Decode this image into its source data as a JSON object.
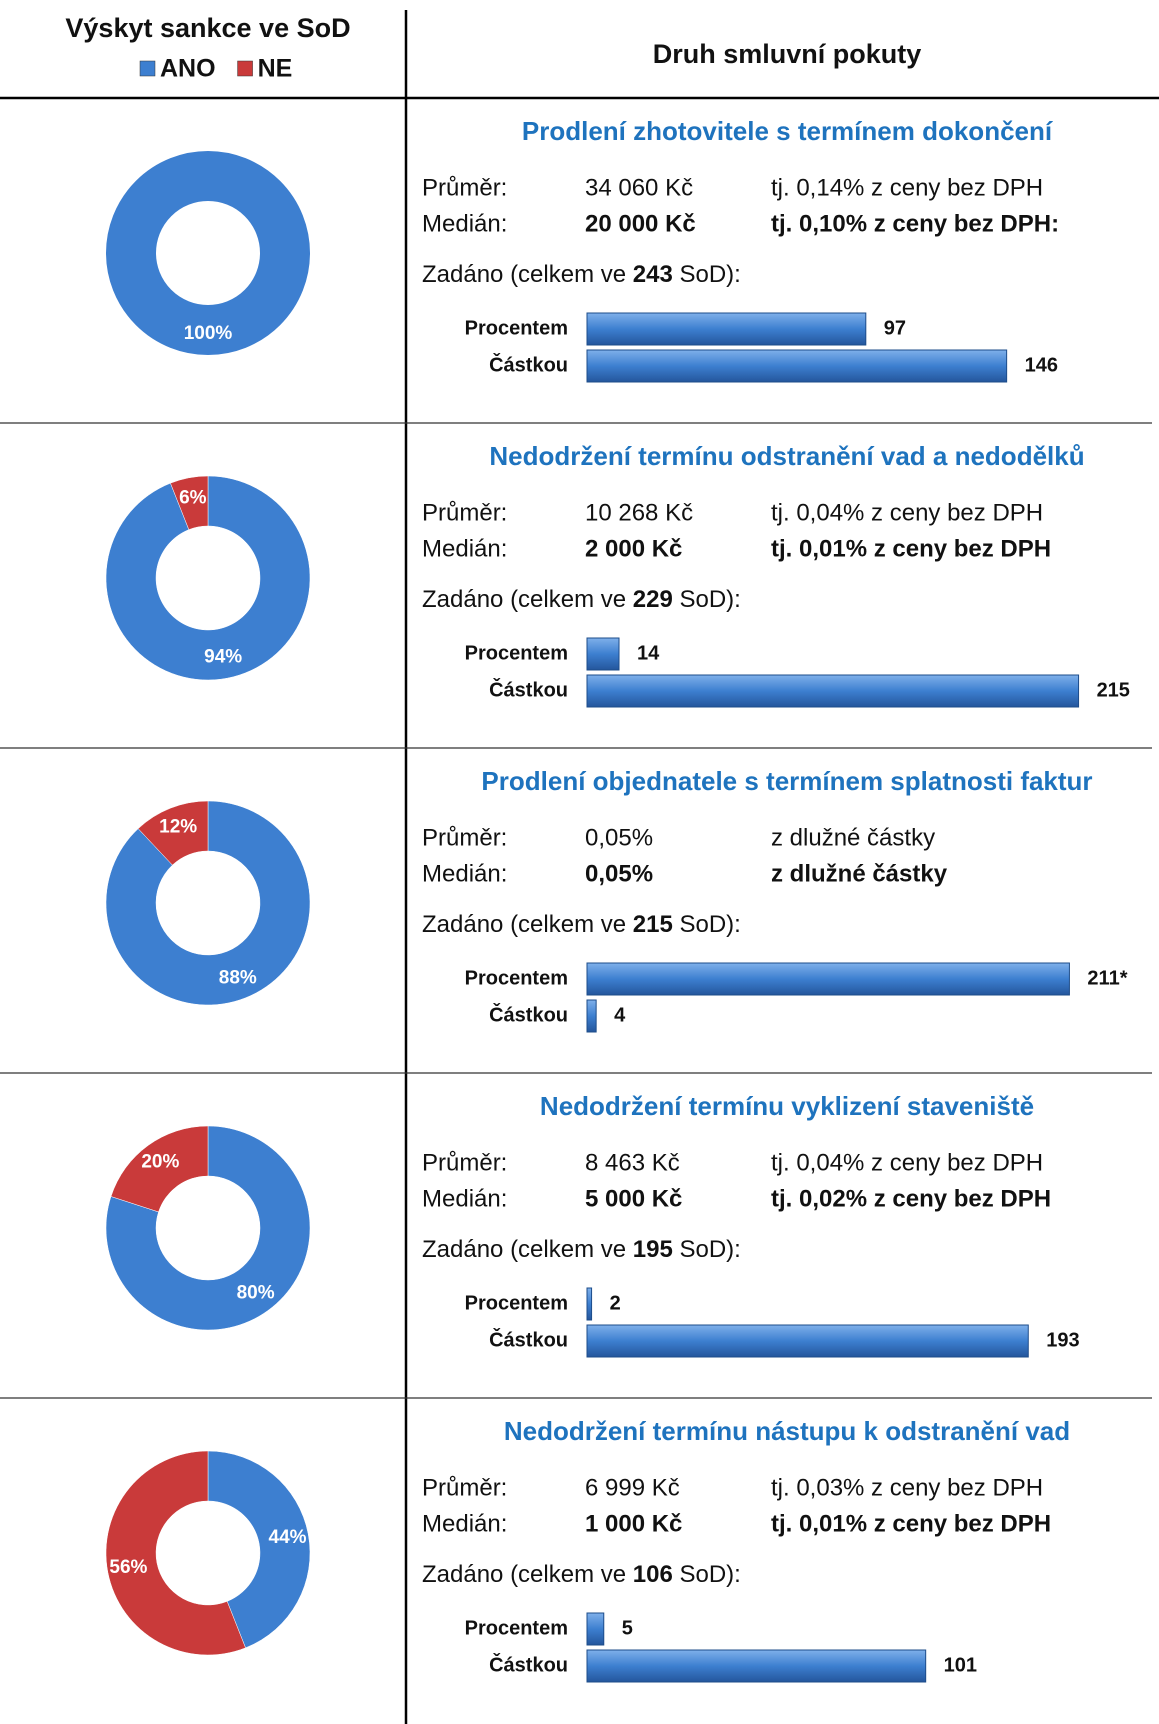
{
  "header": {
    "left_title": "Výskyt sankce ve SoD",
    "legend": [
      {
        "name": "ANO",
        "color": "#3d7fd0"
      },
      {
        "name": "NE",
        "color": "#c93a3a"
      }
    ],
    "right_title": "Druh smluvní pokuty"
  },
  "sections": [
    {
      "title": "Prodlení zhotovitele s termínem dokončení",
      "donut": {
        "type": "pie",
        "values": [
          100,
          null
        ],
        "value_labels": [
          "100%",
          null
        ]
      },
      "average_label": "Průměr:",
      "average_value": "34 060 Kč",
      "average_note": "tj. 0,14% z ceny bez DPH",
      "median_label": "Medián:",
      "median_value": "20 000 Kč",
      "median_note": "tj. 0,10% z ceny bez DPH:",
      "total_prefix": "Zadáno (celkem ve",
      "total": 243,
      "total_suffix": "SoD):",
      "bars": {
        "type": "bar",
        "categories": [
          "Procentem",
          "Částkou"
        ],
        "values": [
          97,
          146
        ],
        "xlim": [
          0,
          175
        ]
      }
    },
    {
      "title": "Nedodržení termínu odstranění vad a nedodělků",
      "donut": {
        "type": "pie",
        "values": [
          94,
          6
        ],
        "value_labels": [
          "94%",
          "6%"
        ]
      },
      "average_label": "Průměr:",
      "average_value": "10 268 Kč",
      "average_note": "tj. 0,04% z ceny bez DPH",
      "median_label": "Medián:",
      "median_value": "2 000 Kč",
      "median_note": "tj. 0,01% z ceny bez DPH",
      "total_prefix": "Zadáno (celkem ve",
      "total": 229,
      "total_suffix": "SoD):",
      "bars": {
        "type": "bar",
        "categories": [
          "Procentem",
          "Částkou"
        ],
        "values": [
          14,
          215
        ],
        "xlim": [
          0,
          220
        ]
      }
    },
    {
      "title": "Prodlení objednatele s termínem splatnosti faktur",
      "donut": {
        "type": "pie",
        "values": [
          88,
          12
        ],
        "value_labels": [
          "88%",
          "12%"
        ]
      },
      "average_label": "Průměr:",
      "average_value": "0,05%",
      "average_note": "z dlužné částky",
      "median_label": "Medián:",
      "median_value": "0,05%",
      "median_note": "z dlužné částky",
      "total_prefix": "Zadáno (celkem ve",
      "total": 215,
      "total_suffix": "SoD):",
      "bars": {
        "type": "bar",
        "categories": [
          "Procentem",
          "Částkou"
        ],
        "values": [
          211,
          4
        ],
        "value_labels": [
          "211*",
          "4"
        ],
        "xlim": [
          0,
          220
        ]
      }
    },
    {
      "title": "Nedodržení termínu vyklizení staveniště",
      "donut": {
        "type": "pie",
        "values": [
          80,
          20
        ],
        "value_labels": [
          "80%",
          "20%"
        ]
      },
      "average_label": "Průměr:",
      "average_value": "8 463 Kč",
      "average_note": "tj. 0,04% z ceny bez DPH",
      "median_label": "Medián:",
      "median_value": "5 000 Kč",
      "median_note": "tj. 0,02% z ceny bez DPH",
      "total_prefix": "Zadáno (celkem ve",
      "total": 195,
      "total_suffix": "SoD):",
      "bars": {
        "type": "bar",
        "categories": [
          "Procentem",
          "Částkou"
        ],
        "values": [
          2,
          193
        ],
        "xlim": [
          0,
          220
        ]
      }
    },
    {
      "title": "Nedodržení termínu nástupu k odstranění vad",
      "donut": {
        "type": "pie",
        "values": [
          44,
          56
        ],
        "value_labels": [
          "44%",
          "56%"
        ]
      },
      "average_label": "Průměr:",
      "average_value": "6 999 Kč",
      "average_note": "tj. 0,03% z ceny bez DPH",
      "median_label": "Medián:",
      "median_value": "1 000 Kč",
      "median_note": "tj. 0,01% z ceny bez DPH",
      "total_prefix": "Zadáno (celkem ve",
      "total": 106,
      "total_suffix": "SoD):",
      "bars": {
        "type": "bar",
        "categories": [
          "Procentem",
          "Částkou"
        ],
        "values": [
          5,
          101
        ],
        "xlim": [
          0,
          150
        ]
      }
    }
  ]
}
